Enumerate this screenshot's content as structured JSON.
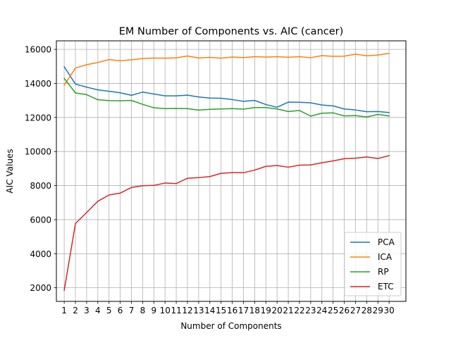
{
  "chart_data": {
    "type": "line",
    "title": "EM Number of Components vs. AIC (cancer)",
    "xlabel": "Number of Components",
    "ylabel": "AIC Values",
    "x": [
      1,
      2,
      3,
      4,
      5,
      6,
      7,
      8,
      9,
      10,
      11,
      12,
      13,
      14,
      15,
      16,
      17,
      18,
      19,
      20,
      21,
      22,
      23,
      24,
      25,
      26,
      27,
      28,
      29,
      30
    ],
    "xlim": [
      0.3,
      31.5
    ],
    "ylim": [
      1200,
      16500
    ],
    "yticks": [
      2000,
      4000,
      6000,
      8000,
      10000,
      12000,
      14000,
      16000
    ],
    "grid": true,
    "legend_position": "lower-right",
    "series": [
      {
        "name": "PCA",
        "color": "#1f77b4",
        "values": [
          14980,
          13960,
          13780,
          13620,
          13540,
          13450,
          13300,
          13490,
          13380,
          13270,
          13270,
          13310,
          13200,
          13140,
          13130,
          13050,
          12950,
          13000,
          12760,
          12600,
          12900,
          12890,
          12860,
          12730,
          12680,
          12500,
          12440,
          12340,
          12350,
          12290
        ]
      },
      {
        "name": "ICA",
        "color": "#ff7f0e",
        "values": [
          13900,
          14900,
          15100,
          15230,
          15400,
          15330,
          15390,
          15460,
          15490,
          15480,
          15500,
          15610,
          15490,
          15530,
          15480,
          15550,
          15520,
          15570,
          15550,
          15570,
          15540,
          15570,
          15510,
          15630,
          15590,
          15600,
          15720,
          15620,
          15670,
          15760
        ]
      },
      {
        "name": "RP",
        "color": "#2ca02c",
        "values": [
          14300,
          13440,
          13340,
          13040,
          12990,
          12980,
          13000,
          12770,
          12570,
          12520,
          12530,
          12520,
          12430,
          12480,
          12500,
          12520,
          12490,
          12580,
          12580,
          12500,
          12350,
          12410,
          12080,
          12250,
          12270,
          12090,
          12110,
          12030,
          12180,
          12090
        ]
      },
      {
        "name": "ETC",
        "color": "#d62728",
        "values": [
          1850,
          5770,
          6420,
          7080,
          7450,
          7560,
          7890,
          7990,
          8010,
          8150,
          8120,
          8430,
          8470,
          8530,
          8720,
          8760,
          8760,
          8910,
          9130,
          9180,
          9080,
          9200,
          9210,
          9340,
          9450,
          9580,
          9610,
          9680,
          9590,
          9760
        ]
      }
    ]
  }
}
